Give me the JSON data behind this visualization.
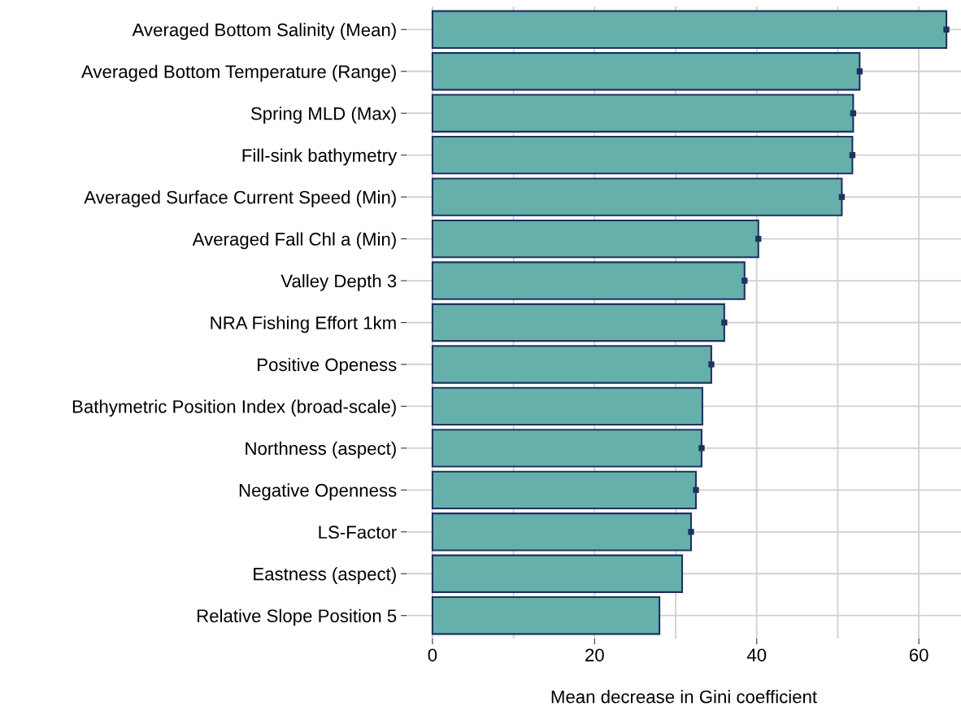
{
  "chart_data": {
    "type": "bar",
    "orientation": "horizontal",
    "xlabel": "Mean decrease in Gini coefficient",
    "categories": [
      "Averaged Bottom Salinity (Mean)",
      "Averaged Bottom Temperature (Range)",
      "Spring MLD (Max)",
      "Fill-sink bathymetry",
      "Averaged Surface Current Speed (Min)",
      "Averaged Fall Chl a (Min)",
      "Valley Depth 3",
      "NRA Fishing Effort 1km",
      "Positive Openess",
      "Bathymetric Position Index (broad-scale)",
      "Northness (aspect)",
      "Negative Openness",
      "LS-Factor",
      "Eastness (aspect)",
      "Relative Slope Position 5"
    ],
    "values": [
      63.4,
      52.7,
      51.9,
      51.8,
      50.5,
      40.2,
      38.5,
      36.0,
      34.4,
      33.3,
      33.2,
      32.5,
      31.9,
      30.8,
      28.0
    ],
    "series": [
      {
        "type": "scatter",
        "color": "#1f3260",
        "marker": "square",
        "values": [
          63.4,
          52.7,
          51.9,
          51.8,
          50.5,
          40.2,
          38.5,
          36.0,
          34.4,
          null,
          33.2,
          32.5,
          31.9,
          null,
          null
        ]
      }
    ],
    "color": "#66b0ac",
    "xlim": [
      -3.2,
      65.2
    ],
    "xticks": [
      0,
      {
        "value": 10,
        "label": null
      },
      20,
      {
        "value": 30,
        "label": null
      },
      40,
      {
        "value": 50,
        "label": null
      },
      60
    ],
    "grid": true
  }
}
